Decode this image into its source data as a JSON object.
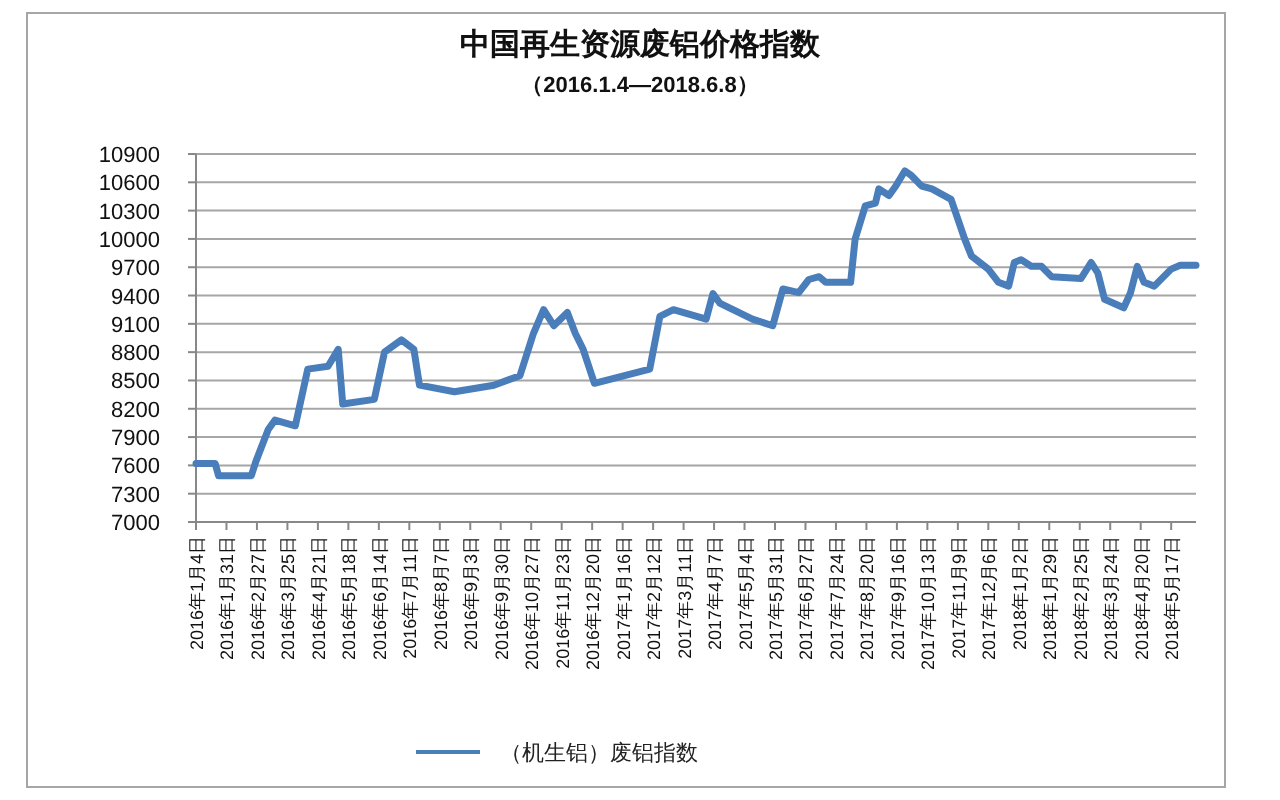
{
  "chart_data": {
    "type": "line",
    "title": "中国再生资源废铝价格指数",
    "subtitle": "（2016.1.4—2018.6.8）",
    "x": [
      "2016-01-04",
      "2016-01-21",
      "2016-01-24",
      "2016-02-22",
      "2016-02-26",
      "2016-03-08",
      "2016-03-14",
      "2016-04-01",
      "2016-04-12",
      "2016-04-30",
      "2016-05-09",
      "2016-05-13",
      "2016-06-10",
      "2016-06-19",
      "2016-07-04",
      "2016-07-15",
      "2016-07-20",
      "2016-08-20",
      "2016-09-24",
      "2016-10-17",
      "2016-10-29",
      "2016-11-07",
      "2016-11-16",
      "2016-11-28",
      "2016-12-05",
      "2016-12-12",
      "2016-12-22",
      "2017-02-09",
      "2017-02-18",
      "2017-03-02",
      "2017-03-31",
      "2017-04-06",
      "2017-04-12",
      "2017-05-11",
      "2017-05-29",
      "2017-06-07",
      "2017-06-21",
      "2017-06-30",
      "2017-07-09",
      "2017-07-15",
      "2017-08-06",
      "2017-08-10",
      "2017-08-19",
      "2017-08-28",
      "2017-08-31",
      "2017-09-09",
      "2017-09-15",
      "2017-09-23",
      "2017-09-29",
      "2017-10-08",
      "2017-10-17",
      "2017-11-03",
      "2017-11-09",
      "2017-11-15",
      "2017-11-21",
      "2017-12-06",
      "2017-12-15",
      "2017-12-24",
      "2017-12-29",
      "2018-01-04",
      "2018-01-13",
      "2018-01-22",
      "2018-01-31",
      "2018-02-26",
      "2018-03-07",
      "2018-03-13",
      "2018-03-19",
      "2018-04-05",
      "2018-04-11",
      "2018-04-17",
      "2018-04-23",
      "2018-05-02",
      "2018-05-17",
      "2018-05-25",
      "2018-06-08"
    ],
    "series": [
      {
        "name": "（机生铝）废铝指数",
        "color": "#4a7ebb",
        "values": [
          7620,
          7620,
          7490,
          7490,
          7640,
          7980,
          8080,
          8020,
          8620,
          8650,
          8830,
          8250,
          8300,
          8800,
          8930,
          8830,
          8450,
          8380,
          8450,
          8550,
          9000,
          9250,
          9080,
          9220,
          9000,
          8830,
          8470,
          8620,
          9180,
          9250,
          9150,
          9420,
          9320,
          9150,
          9080,
          9470,
          9430,
          9570,
          9600,
          9540,
          9540,
          10000,
          10350,
          10380,
          10530,
          10460,
          10560,
          10720,
          10670,
          10560,
          10530,
          10420,
          10210,
          10000,
          9820,
          9680,
          9540,
          9500,
          9750,
          9780,
          9710,
          9710,
          9600,
          9580,
          9750,
          9640,
          9360,
          9270,
          9430,
          9710,
          9540,
          9500,
          9680,
          9720,
          9720
        ]
      }
    ],
    "xlim": [
      "2016-01-04",
      "2018-06-08"
    ],
    "xticks": [
      {
        "value": "2016-01-04",
        "label": "2016年1月4日"
      },
      {
        "value": "2016-01-31",
        "label": "2016年1月31日"
      },
      {
        "value": "2016-02-27",
        "label": "2016年2月27日"
      },
      {
        "value": "2016-03-25",
        "label": "2016年3月25日"
      },
      {
        "value": "2016-04-21",
        "label": "2016年4月21日"
      },
      {
        "value": "2016-05-18",
        "label": "2016年5月18日"
      },
      {
        "value": "2016-06-14",
        "label": "2016年6月14日"
      },
      {
        "value": "2016-07-11",
        "label": "2016年7月11日"
      },
      {
        "value": "2016-08-07",
        "label": "2016年8月7日"
      },
      {
        "value": "2016-09-03",
        "label": "2016年9月3日"
      },
      {
        "value": "2016-09-30",
        "label": "2016年9月30日"
      },
      {
        "value": "2016-10-27",
        "label": "2016年10月27日"
      },
      {
        "value": "2016-11-23",
        "label": "2016年11月23日"
      },
      {
        "value": "2016-12-20",
        "label": "2016年12月20日"
      },
      {
        "value": "2017-01-16",
        "label": "2017年1月16日"
      },
      {
        "value": "2017-02-12",
        "label": "2017年2月12日"
      },
      {
        "value": "2017-03-11",
        "label": "2017年3月11日"
      },
      {
        "value": "2017-04-07",
        "label": "2017年4月7日"
      },
      {
        "value": "2017-05-04",
        "label": "2017年5月4日"
      },
      {
        "value": "2017-05-31",
        "label": "2017年5月31日"
      },
      {
        "value": "2017-06-27",
        "label": "2017年6月27日"
      },
      {
        "value": "2017-07-24",
        "label": "2017年7月24日"
      },
      {
        "value": "2017-08-20",
        "label": "2017年8月20日"
      },
      {
        "value": "2017-09-16",
        "label": "2017年9月16日"
      },
      {
        "value": "2017-10-13",
        "label": "2017年10月13日"
      },
      {
        "value": "2017-11-09",
        "label": "2017年11月9日"
      },
      {
        "value": "2017-12-06",
        "label": "2017年12月6日"
      },
      {
        "value": "2018-01-02",
        "label": "2018年1月2日"
      },
      {
        "value": "2018-01-29",
        "label": "2018年1月29日"
      },
      {
        "value": "2018-02-25",
        "label": "2018年2月25日"
      },
      {
        "value": "2018-03-24",
        "label": "2018年3月24日"
      },
      {
        "value": "2018-04-20",
        "label": "2018年4月20日"
      },
      {
        "value": "2018-05-17",
        "label": "2018年5月17日"
      }
    ],
    "ylim": [
      7000,
      10900
    ],
    "yticks": [
      7000,
      7300,
      7600,
      7900,
      8200,
      8500,
      8800,
      9100,
      9400,
      9700,
      10000,
      10300,
      10600,
      10900
    ],
    "grid": "y",
    "legend": "bottom",
    "line_style": "solid"
  }
}
